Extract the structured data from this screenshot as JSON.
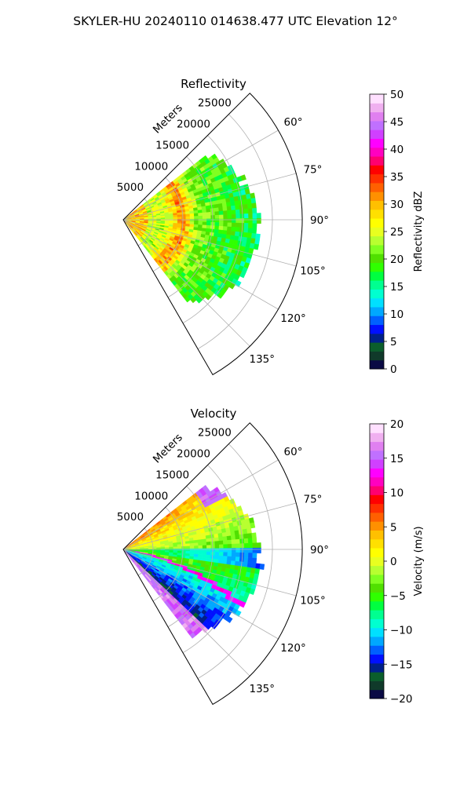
{
  "figure": {
    "title": "SKYLER-HU  20240110  014638.477 UTC Elevation 12°"
  },
  "chart_data": [
    {
      "type": "heatmap",
      "title": "Reflectivity",
      "radial_axis": {
        "label": "Meters",
        "ticks": [
          5000,
          10000,
          15000,
          20000,
          25000
        ],
        "tick_labels": [
          "5000",
          "10000",
          "15000",
          "20000",
          "25000"
        ],
        "range": [
          0,
          30000
        ]
      },
      "azimuth_axis": {
        "range_deg": [
          45,
          150
        ],
        "ticks_deg": [
          60,
          75,
          90,
          105,
          120,
          135
        ],
        "tick_labels": [
          "60°",
          "75°",
          "90°",
          "105°",
          "120°",
          "135°"
        ]
      },
      "grid": true,
      "colorbar": {
        "label": "Reflectivity dBZ",
        "range": [
          0,
          50
        ],
        "ticks": [
          0,
          5,
          10,
          15,
          20,
          25,
          30,
          35,
          40,
          45,
          50
        ],
        "tick_labels": [
          "0",
          "5",
          "10",
          "15",
          "20",
          "25",
          "30",
          "35",
          "40",
          "45",
          "50"
        ],
        "colors": [
          "#0a0a44",
          "#103a2a",
          "#0b5e2c",
          "#00208a",
          "#0010ff",
          "#0060ff",
          "#00a8ff",
          "#00e0ff",
          "#00ffd0",
          "#00ff90",
          "#00ff40",
          "#30ff00",
          "#50e000",
          "#80ff20",
          "#b8ff30",
          "#e8ff20",
          "#ffff00",
          "#ffe000",
          "#ffc000",
          "#ff9000",
          "#ff6000",
          "#ff3000",
          "#ff0000",
          "#ff0070",
          "#ff00c0",
          "#ff00ff",
          "#d040ff",
          "#c070ff",
          "#e080f0",
          "#f0b0f0",
          "#ffe0ff"
        ]
      }
    },
    {
      "type": "heatmap",
      "title": "Velocity",
      "radial_axis": {
        "label": "Meters",
        "ticks": [
          5000,
          10000,
          15000,
          20000,
          25000
        ],
        "tick_labels": [
          "5000",
          "10000",
          "15000",
          "20000",
          "25000"
        ],
        "range": [
          0,
          30000
        ]
      },
      "azimuth_axis": {
        "range_deg": [
          45,
          150
        ],
        "ticks_deg": [
          60,
          75,
          90,
          105,
          120,
          135
        ],
        "tick_labels": [
          "60°",
          "75°",
          "90°",
          "105°",
          "120°",
          "135°"
        ]
      },
      "grid": true,
      "colorbar": {
        "label": "Velocity (m/s)",
        "range": [
          -20,
          20
        ],
        "ticks": [
          -20,
          -15,
          -10,
          -5,
          0,
          5,
          10,
          15,
          20
        ],
        "tick_labels": [
          "−20",
          "−15",
          "−10",
          "−5",
          "0",
          "5",
          "10",
          "15",
          "20"
        ],
        "colors": [
          "#0a0a44",
          "#103a2a",
          "#0b5e2c",
          "#00208a",
          "#0010ff",
          "#0060ff",
          "#00a8ff",
          "#00e0ff",
          "#00ffd0",
          "#00ff90",
          "#00ff40",
          "#30ff00",
          "#50e000",
          "#80ff20",
          "#b8ff30",
          "#e8ff20",
          "#ffff00",
          "#ffe000",
          "#ffc000",
          "#ff9000",
          "#ff6000",
          "#ff3000",
          "#ff0000",
          "#ff0070",
          "#ff00c0",
          "#ff00ff",
          "#d040ff",
          "#c070ff",
          "#e080f0",
          "#f0b0f0",
          "#ffe0ff"
        ]
      }
    }
  ]
}
